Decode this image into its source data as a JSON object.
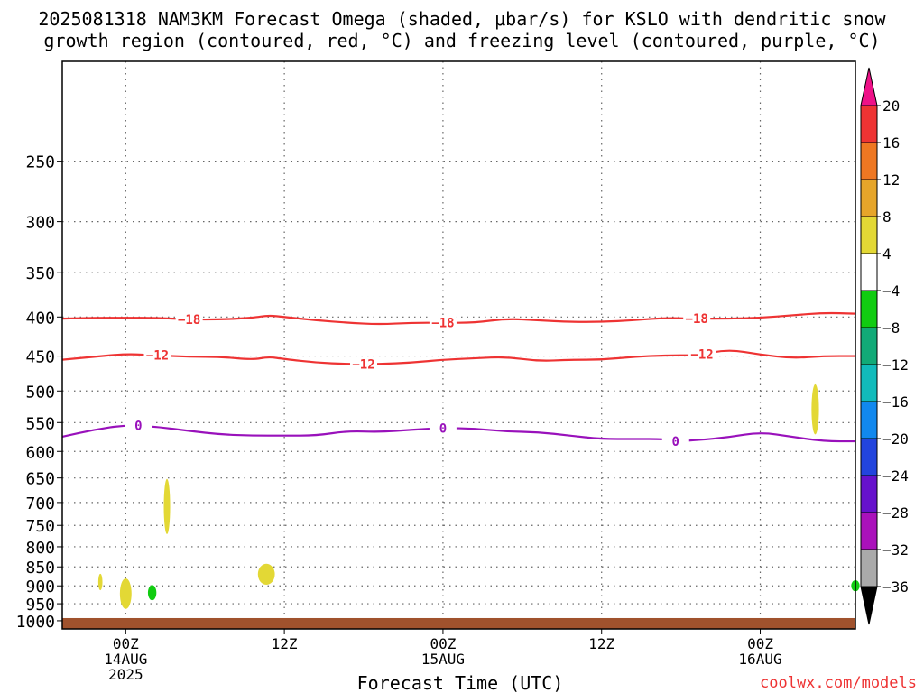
{
  "chart_data": {
    "type": "heatmap",
    "title": "2025081318 NAM3KM Forecast Omega (shaded, μbar/s) for KSLO with dendritic snow growth region (contoured, red, °C) and freezing level (contoured, purple, °C)",
    "xlabel": "Forecast Time (UTC)",
    "ylabel": "",
    "credit": "coolwx.com/models",
    "xlim": [
      -6,
      69
    ],
    "x_ticks": [
      {
        "x": 0,
        "lines": [
          "00Z",
          "14AUG",
          "2025"
        ]
      },
      {
        "x": 15,
        "lines": [
          "12Z"
        ]
      },
      {
        "x": 30,
        "lines": [
          "00Z",
          "15AUG"
        ]
      },
      {
        "x": 45,
        "lines": [
          "12Z"
        ]
      },
      {
        "x": 60,
        "lines": [
          "00Z",
          "16AUG"
        ]
      }
    ],
    "y_ticks": [
      250,
      300,
      350,
      400,
      450,
      500,
      550,
      600,
      650,
      700,
      750,
      800,
      850,
      900,
      950,
      1000
    ],
    "ylim": [
      1025,
      185
    ],
    "colorbar": {
      "labels": [
        "20",
        "16",
        "12",
        "8",
        "4",
        "−4",
        "−8",
        "−12",
        "−16",
        "−20",
        "−24",
        "−28",
        "−32",
        "−36"
      ],
      "colors": [
        "#ee1188",
        "#ee3333",
        "#ee7722",
        "#e6a52a",
        "#e3d835",
        "#ffffff",
        "#11cc11",
        "#11aa77",
        "#11bbbb",
        "#1188ee",
        "#2244dd",
        "#6611cc",
        "#aa11bb",
        "#aaaaaa",
        "#000000"
      ]
    },
    "contours": [
      {
        "name": "-18",
        "color": "#ee3333",
        "labels_x": [
          6,
          30,
          54
        ],
        "points": [
          [
            -6,
            402
          ],
          [
            -3,
            401
          ],
          [
            0,
            401
          ],
          [
            3,
            401
          ],
          [
            6,
            403
          ],
          [
            9,
            403
          ],
          [
            12,
            401
          ],
          [
            13.5,
            398
          ],
          [
            15,
            400
          ],
          [
            18,
            404
          ],
          [
            21,
            407
          ],
          [
            24,
            409
          ],
          [
            27,
            407
          ],
          [
            30,
            407
          ],
          [
            33,
            407
          ],
          [
            36,
            402
          ],
          [
            39,
            404
          ],
          [
            42,
            406
          ],
          [
            45,
            406
          ],
          [
            48,
            404
          ],
          [
            51,
            401
          ],
          [
            54,
            402
          ],
          [
            57,
            402
          ],
          [
            60,
            401
          ],
          [
            63,
            398
          ],
          [
            66,
            395
          ],
          [
            69,
            396
          ]
        ]
      },
      {
        "name": "-12",
        "color": "#ee3333",
        "labels_x": [
          3,
          22.5,
          54.5
        ],
        "points": [
          [
            -6,
            455
          ],
          [
            -3,
            451
          ],
          [
            0,
            447
          ],
          [
            3,
            449
          ],
          [
            6,
            451
          ],
          [
            9,
            451
          ],
          [
            12,
            455
          ],
          [
            13.5,
            451
          ],
          [
            15,
            454
          ],
          [
            18,
            459
          ],
          [
            21,
            461
          ],
          [
            24,
            461
          ],
          [
            27,
            459
          ],
          [
            30,
            455
          ],
          [
            33,
            453
          ],
          [
            36,
            451
          ],
          [
            39,
            457
          ],
          [
            42,
            455
          ],
          [
            45,
            455
          ],
          [
            48,
            451
          ],
          [
            51,
            449
          ],
          [
            54,
            449
          ],
          [
            57,
            441
          ],
          [
            60,
            448
          ],
          [
            63,
            453
          ],
          [
            66,
            450
          ],
          [
            69,
            450
          ]
        ]
      },
      {
        "name": "0",
        "color": "#9911bb",
        "labels_x": [
          1.2,
          30,
          52
        ],
        "points": [
          [
            -6,
            574
          ],
          [
            -3,
            562
          ],
          [
            0,
            554
          ],
          [
            3,
            557
          ],
          [
            6,
            564
          ],
          [
            9,
            570
          ],
          [
            12,
            572
          ],
          [
            15,
            572
          ],
          [
            18,
            572
          ],
          [
            21,
            564
          ],
          [
            24,
            566
          ],
          [
            27,
            562
          ],
          [
            30,
            559
          ],
          [
            33,
            560
          ],
          [
            36,
            565
          ],
          [
            39,
            566
          ],
          [
            42,
            572
          ],
          [
            45,
            578
          ],
          [
            48,
            578
          ],
          [
            51,
            578
          ],
          [
            52,
            582
          ],
          [
            54,
            580
          ],
          [
            57,
            575
          ],
          [
            60,
            566
          ],
          [
            63,
            574
          ],
          [
            66,
            582
          ],
          [
            69,
            582
          ]
        ]
      }
    ],
    "shaded_regions": [
      {
        "value": 6,
        "color": "#e3d835",
        "t_center": 0,
        "t_halfwidth": 0.55,
        "p_top": 880,
        "p_bottom": 965
      },
      {
        "value": 6,
        "color": "#e3d835",
        "t_center": -2.4,
        "t_halfwidth": 0.2,
        "p_top": 868,
        "p_bottom": 912
      },
      {
        "value": -6,
        "color": "#11cc11",
        "t_center": 2.5,
        "t_halfwidth": 0.4,
        "p_top": 898,
        "p_bottom": 940
      },
      {
        "value": 6,
        "color": "#e3d835",
        "t_center": 3.9,
        "t_halfwidth": 0.3,
        "p_top": 652,
        "p_bottom": 770
      },
      {
        "value": 6,
        "color": "#e3d835",
        "t_center": 13.3,
        "t_halfwidth": 0.8,
        "p_top": 842,
        "p_bottom": 897
      },
      {
        "value": 6,
        "color": "#e3d835",
        "t_center": 65.2,
        "t_halfwidth": 0.35,
        "p_top": 490,
        "p_bottom": 570
      },
      {
        "value": -6,
        "color": "#11cc11",
        "t_center": 69,
        "t_halfwidth": 0.4,
        "p_top": 885,
        "p_bottom": 915
      }
    ],
    "terrain": {
      "color": "#a0522d",
      "surface_pressure": 992
    }
  }
}
